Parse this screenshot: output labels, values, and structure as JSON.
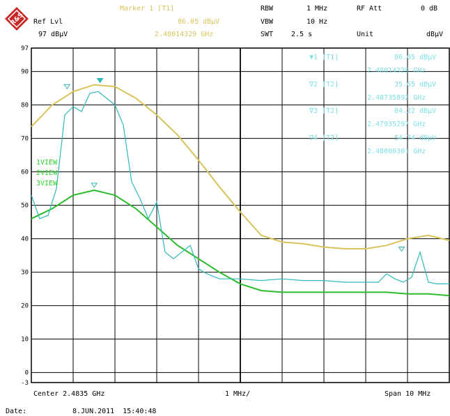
{
  "header": {
    "ref_lvl_label": "Ref Lvl",
    "ref_lvl_value": "97 dBµV",
    "marker_title": "Marker 1 [T1]",
    "marker_level": "86.05 dBµV",
    "marker_freq": "2.48014329 GHz",
    "rbw_label": "RBW",
    "rbw_value": "1 MHz",
    "vbw_label": "VBW",
    "vbw_value": "10 Hz",
    "swt_label": "SWT",
    "swt_value": "2.5 s",
    "rf_att_label": "RF Att",
    "rf_att_value": "0 dB",
    "unit_label": "Unit",
    "unit_value": "dBµV"
  },
  "markers": [
    {
      "label": "1 [T1]",
      "level": "86.05 dBµV",
      "freq": "2.48014329 GHz"
    },
    {
      "label": "2 [T2]",
      "level": "35.65 dBµV",
      "freq": "2.48735892 GHz"
    },
    {
      "label": "3 [T2]",
      "level": "84.22 dBµV",
      "freq": "2.47935297 GHz"
    },
    {
      "label": "4 [T2]",
      "level": "54.74 dBµV",
      "freq": "2.48000301 GHz"
    }
  ],
  "trace_labels": [
    "1VIEW",
    "2VIEW",
    "3VIEW"
  ],
  "footer": {
    "center": "Center 2.4835 GHz",
    "div": "1 MHz/",
    "span": "Span 10 MHz",
    "date_label": "Date:",
    "date_value": "8.JUN.2011  15:40:48"
  },
  "colors": {
    "yellow": "#d8c45a",
    "cyan": "#30b8b8",
    "green": "#2bbb2b",
    "grid": "#000000"
  },
  "chart_data": {
    "type": "line",
    "xlabel": "",
    "ylabel": "",
    "xlim": [
      2.4785,
      2.4885
    ],
    "ylim": [
      -3,
      97
    ],
    "y_ticks": [
      -3,
      0,
      10,
      20,
      30,
      40,
      50,
      60,
      70,
      80,
      90,
      97
    ],
    "grid": true,
    "series": [
      {
        "color": "#d8c45a",
        "x": [
          2.4785,
          2.479,
          2.4795,
          2.48,
          2.4805,
          2.481,
          2.4815,
          2.482,
          2.4825,
          2.483,
          2.4835,
          2.484,
          2.4845,
          2.485,
          2.4855,
          2.486,
          2.4865,
          2.487,
          2.4875,
          2.488,
          2.4885
        ],
        "values": [
          73.5,
          80,
          84,
          86,
          85.5,
          82,
          77,
          71,
          63.5,
          55.5,
          48,
          41,
          39,
          38.5,
          37.5,
          37,
          37,
          38,
          40,
          41,
          39.5
        ]
      },
      {
        "color": "#2bbb2b",
        "x": [
          2.4785,
          2.479,
          2.4795,
          2.48,
          2.4805,
          2.481,
          2.4815,
          2.482,
          2.4825,
          2.483,
          2.4835,
          2.484,
          2.4845,
          2.485,
          2.4855,
          2.486,
          2.4865,
          2.487,
          2.4875,
          2.488,
          2.4885
        ],
        "values": [
          46,
          49,
          53,
          54.5,
          53,
          49,
          43.5,
          38,
          34,
          30,
          26.5,
          24.5,
          24,
          24,
          24,
          24,
          24,
          24,
          23.5,
          23.5,
          23
        ]
      },
      {
        "color": "#30b8b8",
        "x": [
          2.4785,
          2.4787,
          2.4789,
          2.4791,
          2.4793,
          2.4795,
          2.4797,
          2.4799,
          2.4801,
          2.4803,
          2.4805,
          2.4807,
          2.4809,
          2.4811,
          2.4813,
          2.4815,
          2.4817,
          2.4819,
          2.4821,
          2.4823,
          2.4825,
          2.4827,
          2.483,
          2.4835,
          2.484,
          2.4845,
          2.485,
          2.4855,
          2.486,
          2.4865,
          2.4868,
          2.487,
          2.4872,
          2.4874,
          2.4876,
          2.4878,
          2.488,
          2.4882,
          2.4885
        ],
        "values": [
          53,
          46,
          47,
          55,
          77,
          79.5,
          78,
          83.5,
          84,
          82,
          80,
          74,
          57,
          52,
          46,
          51,
          36,
          34,
          36,
          38,
          31,
          29.5,
          28,
          28,
          27.5,
          28,
          27.5,
          27.5,
          27,
          27,
          27,
          29.5,
          28,
          27,
          28.5,
          36,
          27,
          26.5,
          26.5
        ]
      }
    ]
  }
}
